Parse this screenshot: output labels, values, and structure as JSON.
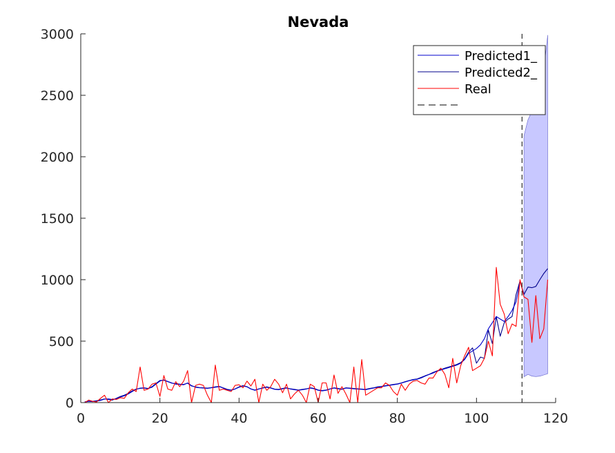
{
  "chart_data": {
    "type": "line",
    "title": "Nevada",
    "xlabel": "",
    "ylabel": "",
    "xlim": [
      0,
      120
    ],
    "ylim": [
      0,
      3000
    ],
    "xticks": [
      0,
      20,
      40,
      60,
      80,
      100,
      120
    ],
    "yticks": [
      0,
      500,
      1000,
      1500,
      2000,
      2500,
      3000
    ],
    "grid": false,
    "legend_location": "top-right",
    "vline": {
      "x": 111.5,
      "style": "dashed",
      "color": "#000000"
    },
    "band": {
      "color": "#c8c8ff",
      "x": [
        112,
        113,
        114,
        115,
        116,
        117,
        118
      ],
      "lower": [
        210,
        230,
        215,
        212,
        215,
        225,
        235
      ],
      "upper": [
        2170,
        2300,
        2370,
        2400,
        2440,
        2700,
        2990
      ]
    },
    "series": [
      {
        "name": "Predicted1_",
        "color": "#0000cc",
        "x": [
          1,
          2,
          3,
          4,
          5,
          6,
          7,
          8,
          9,
          10,
          11,
          12,
          13,
          14,
          15,
          16,
          17,
          18,
          19,
          20,
          21,
          22,
          23,
          24,
          25,
          26,
          27,
          28,
          29,
          30,
          31,
          32,
          33,
          34,
          35,
          36,
          37,
          38,
          39,
          40,
          41,
          42,
          43,
          44,
          45,
          46,
          47,
          48,
          49,
          50,
          51,
          52,
          53,
          54,
          55,
          56,
          57,
          58,
          59,
          60,
          61,
          62,
          63,
          64,
          65,
          66,
          67,
          68,
          69,
          70,
          71,
          72,
          73,
          74,
          75,
          76,
          77,
          78,
          79,
          80,
          81,
          82,
          83,
          84,
          85,
          86,
          87,
          88,
          89,
          90,
          91,
          92,
          93,
          94,
          95,
          96,
          97,
          98,
          99,
          100,
          101,
          102,
          103,
          104,
          105,
          106,
          107,
          108,
          109,
          110,
          111
        ],
        "y": [
          5,
          10,
          8,
          12,
          18,
          28,
          30,
          25,
          32,
          45,
          55,
          70,
          90,
          108,
          118,
          120,
          115,
          125,
          150,
          175,
          185,
          172,
          160,
          150,
          148,
          145,
          160,
          138,
          125,
          120,
          118,
          115,
          120,
          125,
          130,
          118,
          105,
          100,
          110,
          125,
          135,
          128,
          110,
          100,
          110,
          118,
          125,
          118,
          108,
          105,
          112,
          118,
          110,
          105,
          100,
          105,
          110,
          118,
          112,
          100,
          95,
          100,
          110,
          118,
          112,
          108,
          118,
          115,
          112,
          110,
          108,
          105,
          112,
          118,
          125,
          130,
          135,
          140,
          145,
          150,
          158,
          168,
          178,
          185,
          190,
          200,
          215,
          228,
          240,
          255,
          265,
          275,
          285,
          295,
          305,
          320,
          350,
          400,
          420,
          440,
          470,
          520,
          600,
          650,
          700,
          680,
          660,
          700,
          750,
          820,
          980
        ]
      },
      {
        "name": "Predicted2_",
        "color": "#00008b",
        "x": [
          1,
          2,
          3,
          4,
          5,
          6,
          7,
          8,
          9,
          10,
          11,
          12,
          13,
          14,
          15,
          16,
          17,
          18,
          19,
          20,
          21,
          22,
          23,
          24,
          25,
          26,
          27,
          28,
          29,
          30,
          31,
          32,
          33,
          34,
          35,
          36,
          37,
          38,
          39,
          40,
          41,
          42,
          43,
          44,
          45,
          46,
          47,
          48,
          49,
          50,
          51,
          52,
          53,
          54,
          55,
          56,
          57,
          58,
          59,
          60,
          61,
          62,
          63,
          64,
          65,
          66,
          67,
          68,
          69,
          70,
          71,
          72,
          73,
          74,
          75,
          76,
          77,
          78,
          79,
          80,
          81,
          82,
          83,
          84,
          85,
          86,
          87,
          88,
          89,
          90,
          91,
          92,
          93,
          94,
          95,
          96,
          97,
          98,
          99,
          100,
          101,
          102,
          103,
          104,
          105,
          106,
          107,
          108,
          109,
          110,
          111,
          112,
          113,
          114,
          115,
          116,
          117,
          118
        ],
        "y": [
          5,
          12,
          10,
          15,
          22,
          30,
          25,
          20,
          35,
          50,
          60,
          75,
          95,
          110,
          115,
          118,
          112,
          130,
          155,
          180,
          182,
          170,
          158,
          155,
          150,
          148,
          158,
          135,
          128,
          122,
          120,
          118,
          122,
          128,
          132,
          120,
          108,
          102,
          112,
          128,
          138,
          130,
          112,
          102,
          112,
          120,
          128,
          120,
          110,
          108,
          115,
          120,
          112,
          108,
          102,
          108,
          112,
          120,
          115,
          102,
          98,
          102,
          112,
          120,
          115,
          110,
          120,
          118,
          115,
          112,
          110,
          108,
          115,
          120,
          128,
          132,
          138,
          142,
          148,
          152,
          160,
          170,
          180,
          188,
          192,
          205,
          218,
          230,
          245,
          258,
          268,
          280,
          290,
          300,
          310,
          325,
          355,
          410,
          445,
          320,
          370,
          360,
          590,
          480,
          700,
          540,
          650,
          680,
          700,
          880,
          990,
          880,
          940,
          935,
          945,
          1000,
          1050,
          1090
        ]
      },
      {
        "name": "Real",
        "color": "#ff0000",
        "x": [
          1,
          2,
          3,
          4,
          5,
          6,
          7,
          8,
          9,
          10,
          11,
          12,
          13,
          14,
          15,
          16,
          17,
          18,
          19,
          20,
          21,
          22,
          23,
          24,
          25,
          26,
          27,
          28,
          29,
          30,
          31,
          32,
          33,
          34,
          35,
          36,
          37,
          38,
          39,
          40,
          41,
          42,
          43,
          44,
          45,
          46,
          47,
          48,
          49,
          50,
          51,
          52,
          53,
          54,
          55,
          56,
          57,
          58,
          59,
          60,
          61,
          62,
          63,
          64,
          65,
          66,
          67,
          68,
          69,
          70,
          71,
          72,
          73,
          74,
          75,
          76,
          77,
          78,
          79,
          80,
          81,
          82,
          83,
          84,
          85,
          86,
          87,
          88,
          89,
          90,
          91,
          92,
          93,
          94,
          95,
          96,
          97,
          98,
          99,
          100,
          101,
          102,
          103,
          104,
          105,
          106,
          107,
          108,
          109,
          110,
          111,
          112,
          113,
          114,
          115,
          116,
          117,
          118
        ],
        "y": [
          0,
          20,
          10,
          5,
          35,
          60,
          0,
          30,
          25,
          40,
          35,
          80,
          110,
          90,
          290,
          100,
          110,
          150,
          160,
          50,
          220,
          110,
          100,
          170,
          130,
          175,
          260,
          0,
          140,
          150,
          140,
          60,
          0,
          305,
          100,
          110,
          100,
          90,
          140,
          145,
          120,
          175,
          135,
          190,
          0,
          150,
          100,
          130,
          190,
          150,
          80,
          150,
          30,
          70,
          100,
          60,
          0,
          150,
          130,
          0,
          160,
          160,
          30,
          225,
          75,
          130,
          70,
          0,
          290,
          0,
          350,
          60,
          80,
          100,
          120,
          120,
          160,
          140,
          90,
          60,
          150,
          100,
          150,
          175,
          180,
          160,
          150,
          200,
          200,
          250,
          280,
          230,
          120,
          360,
          160,
          300,
          380,
          450,
          260,
          280,
          300,
          360,
          500,
          380,
          1100,
          800,
          720,
          560,
          640,
          620,
          1000,
          860,
          840,
          490,
          870,
          520,
          600,
          1000
        ]
      },
      {
        "name": "",
        "color": "#000000",
        "dashed": true
      }
    ]
  }
}
